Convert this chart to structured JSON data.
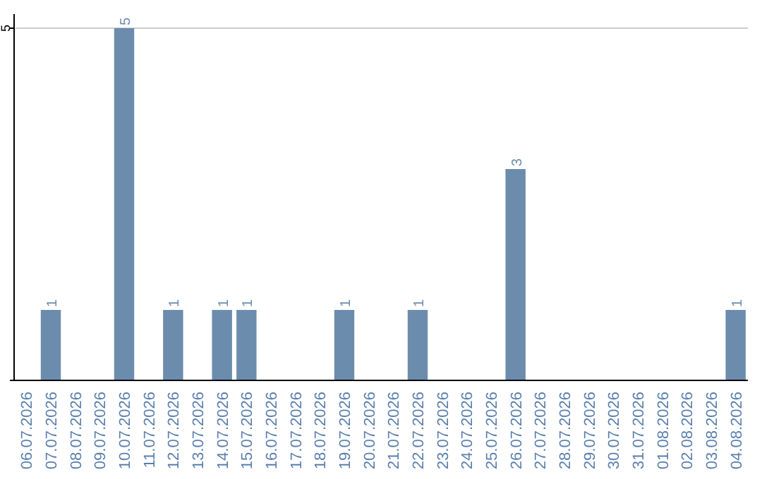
{
  "chart_data": {
    "type": "bar",
    "categories": [
      "06.07.2026",
      "07.07.2026",
      "08.07.2026",
      "09.07.2026",
      "10.07.2026",
      "11.07.2026",
      "12.07.2026",
      "13.07.2026",
      "14.07.2026",
      "15.07.2026",
      "16.07.2026",
      "17.07.2026",
      "18.07.2026",
      "19.07.2026",
      "20.07.2026",
      "21.07.2026",
      "22.07.2026",
      "23.07.2026",
      "24.07.2026",
      "25.07.2026",
      "26.07.2026",
      "27.07.2026",
      "28.07.2026",
      "29.07.2026",
      "30.07.2026",
      "31.07.2026",
      "01.08.2026",
      "02.08.2026",
      "03.08.2026",
      "04.08.2026"
    ],
    "values": [
      0,
      1,
      0,
      0,
      5,
      0,
      1,
      0,
      1,
      1,
      0,
      0,
      0,
      1,
      0,
      0,
      1,
      0,
      0,
      0,
      3,
      0,
      0,
      0,
      0,
      0,
      0,
      0,
      0,
      1
    ],
    "value_labels": [
      null,
      "1",
      null,
      null,
      "5",
      null,
      "1",
      null,
      "1",
      "1",
      null,
      null,
      null,
      "1",
      null,
      null,
      "1",
      null,
      null,
      null,
      "3",
      null,
      null,
      null,
      null,
      null,
      null,
      null,
      null,
      "1"
    ],
    "color": "#6b8cad",
    "ylim": [
      0,
      5.2
    ],
    "yticks": [
      {
        "value": 0,
        "label": null
      },
      5
    ],
    "grid": "y"
  }
}
